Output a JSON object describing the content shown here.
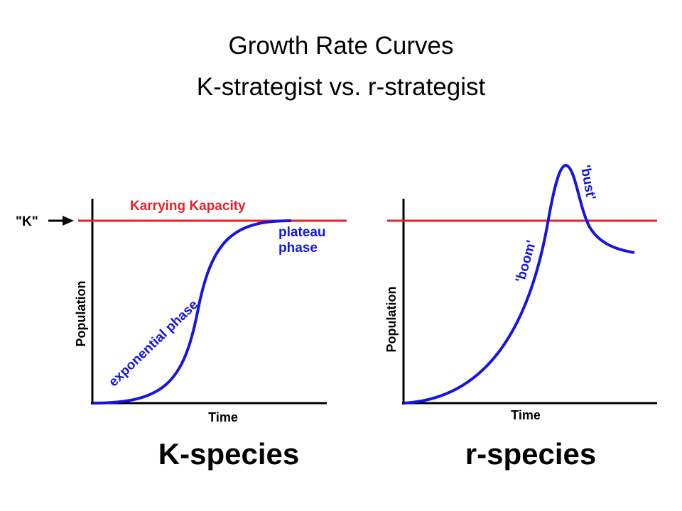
{
  "title": {
    "line1": "Growth Rate Curves",
    "line2": "K-strategist vs. r-strategist"
  },
  "k_panel": {
    "k_marker": "\"K\"",
    "capacity_label": "Karrying Kapacity",
    "plateau_line1": "plateau",
    "plateau_line2": "phase",
    "exponential_label": "exponential phase",
    "y_label": "Population",
    "x_label": "Time",
    "caption": "K-species"
  },
  "r_panel": {
    "boom_label": "'boom'",
    "bust_label": "'bust'",
    "y_label": "Population",
    "x_label": "Time",
    "caption": "r-species"
  }
}
